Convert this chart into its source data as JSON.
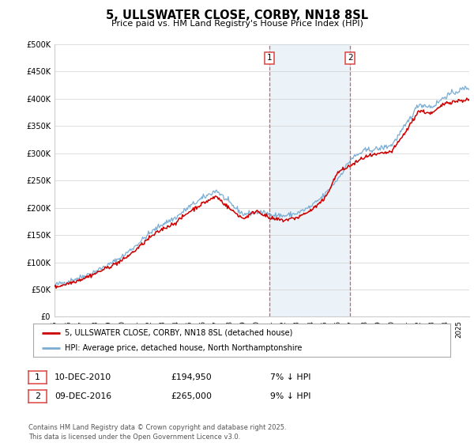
{
  "title": "5, ULLSWATER CLOSE, CORBY, NN18 8SL",
  "subtitle": "Price paid vs. HM Land Registry's House Price Index (HPI)",
  "ylim": [
    0,
    500000
  ],
  "yticks": [
    0,
    50000,
    100000,
    150000,
    200000,
    250000,
    300000,
    350000,
    400000,
    450000,
    500000
  ],
  "ytick_labels": [
    "£0",
    "£50K",
    "£100K",
    "£150K",
    "£200K",
    "£250K",
    "£300K",
    "£350K",
    "£400K",
    "£450K",
    "£500K"
  ],
  "legend_line1": "5, ULLSWATER CLOSE, CORBY, NN18 8SL (detached house)",
  "legend_line2": "HPI: Average price, detached house, North Northamptonshire",
  "red_line_color": "#cc0000",
  "blue_line_color": "#7aadd4",
  "vline_color": "#dd4444",
  "vline_x1": 2010.92,
  "vline_x2": 2016.92,
  "table_row1": [
    "1",
    "10-DEC-2010",
    "£194,950",
    "7% ↓ HPI"
  ],
  "table_row2": [
    "2",
    "09-DEC-2016",
    "£265,000",
    "9% ↓ HPI"
  ],
  "footnote": "Contains HM Land Registry data © Crown copyright and database right 2025.\nThis data is licensed under the Open Government Licence v3.0.",
  "background_color": "#ffffff",
  "shaded_region_color": "#d8e8f5",
  "xlim_start": 1995,
  "xlim_end": 2025.75
}
